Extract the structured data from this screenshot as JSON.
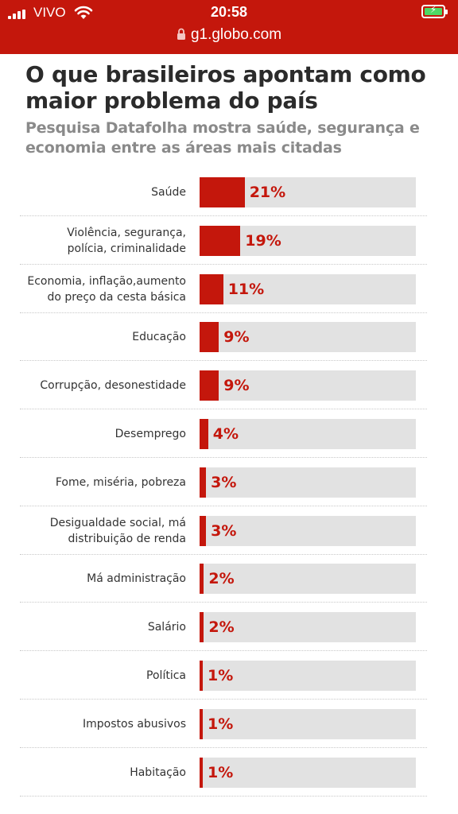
{
  "status_bar": {
    "carrier": "VIVO",
    "time": "20:58",
    "url": "g1.globo.com",
    "signal_icon": "cellular-signal-icon",
    "wifi_icon": "wifi-icon",
    "battery_icon": "battery-charging-icon",
    "lock_icon": "lock-icon"
  },
  "colors": {
    "brand": "#c4170c",
    "track": "#e2e2e2",
    "title": "#2b2b2b",
    "subtitle": "#8a8a8a"
  },
  "chart_data": {
    "type": "bar",
    "orientation": "horizontal",
    "title": "O que brasileiros apontam como maior problema do país",
    "subtitle": "Pesquisa Datafolha mostra saúde, segurança e economia entre as áreas mais citadas",
    "xlim": [
      0,
      100
    ],
    "grid": false,
    "legend": "none",
    "categories": [
      "Saúde",
      "Violência, segurança, polícia, criminalidade",
      "Economia, inflação,aumento do preço da cesta básica",
      "Educação",
      "Corrupção, desonestidade",
      "Desemprego",
      "Fome, miséria, pobreza",
      "Desigualdade social, má distribuição de renda",
      "Má administração",
      "Salário",
      "Política",
      "Impostos abusivos",
      "Habitação"
    ],
    "labels": [
      [
        "Saúde"
      ],
      [
        "Violência, segurança,",
        "polícia, criminalidade"
      ],
      [
        "Economia, inflação,aumento",
        "do preço da cesta básica"
      ],
      [
        "Educação"
      ],
      [
        "Corrupção, desonestidade"
      ],
      [
        "Desemprego"
      ],
      [
        "Fome, miséria, pobreza"
      ],
      [
        "Desigualdade social, má",
        "distribuição de renda"
      ],
      [
        "Má administração"
      ],
      [
        "Salário"
      ],
      [
        "Política"
      ],
      [
        "Impostos abusivos"
      ],
      [
        "Habitação"
      ]
    ],
    "values": [
      21,
      19,
      11,
      9,
      9,
      4,
      3,
      3,
      2,
      2,
      1,
      1,
      1
    ],
    "value_labels": [
      "21%",
      "19%",
      "11%",
      "9%",
      "9%",
      "4%",
      "3%",
      "3%",
      "2%",
      "2%",
      "1%",
      "1%",
      "1%"
    ]
  }
}
